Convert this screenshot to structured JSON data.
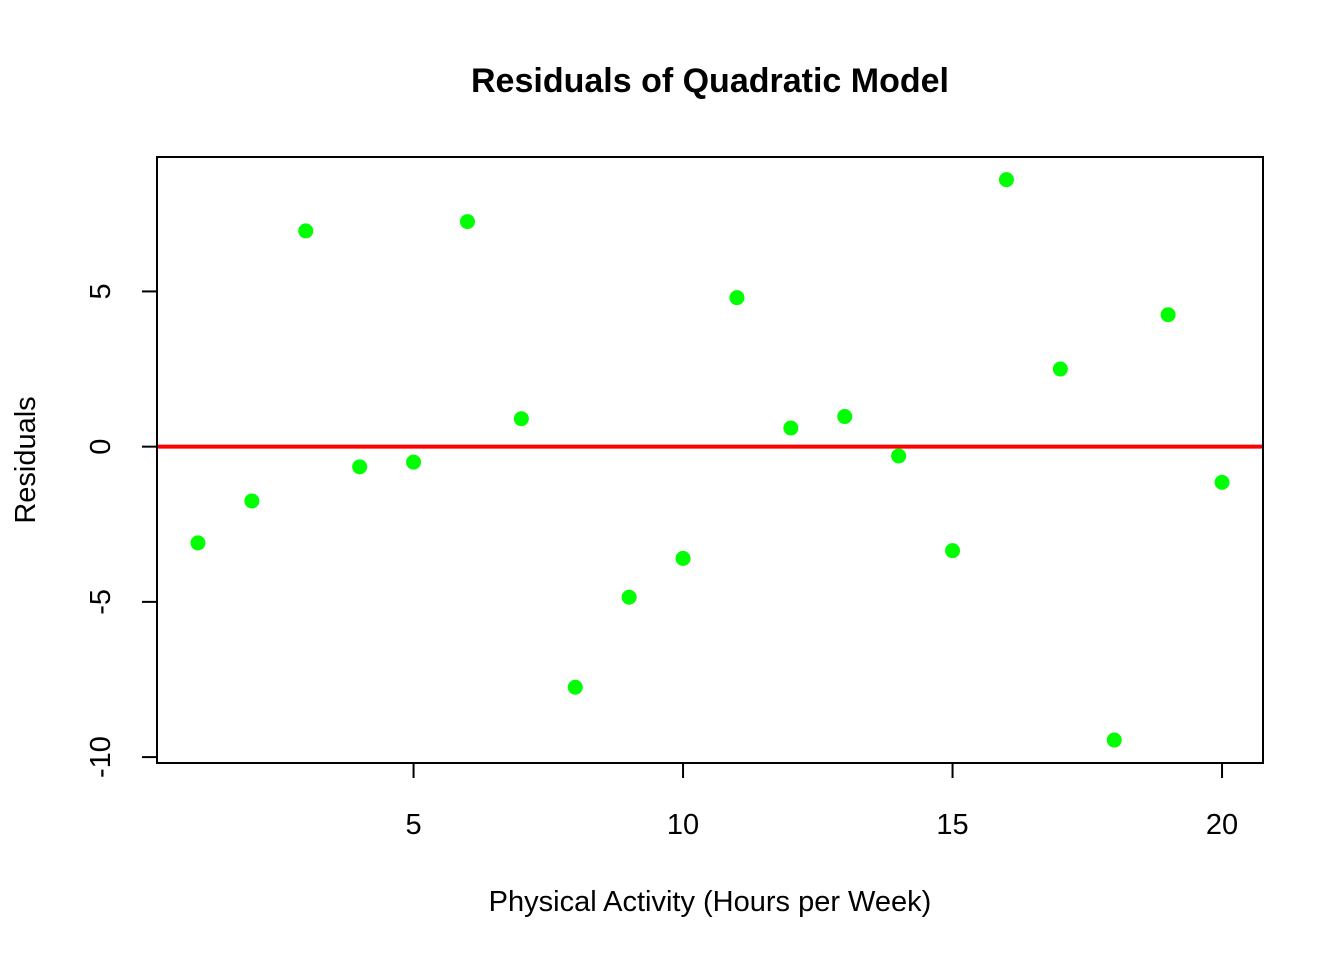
{
  "chart_data": {
    "type": "scatter",
    "title": "Residuals of Quadratic Model",
    "xlabel": "Physical Activity (Hours per Week)",
    "ylabel": "Residuals",
    "xlim": [
      0.24,
      20.76
    ],
    "ylim": [
      -10.19,
      9.33
    ],
    "xticks": [
      5,
      10,
      15,
      20
    ],
    "yticks": [
      -10,
      -5,
      0,
      5
    ],
    "xtick_labels": [
      "5",
      "10",
      "15",
      "20"
    ],
    "ytick_labels": [
      "-10",
      "-5",
      "0",
      "5"
    ],
    "grid": false,
    "legend": "none",
    "point_color": "#00ff00",
    "reference_line": {
      "y": 0,
      "color": "#ff0000"
    },
    "points": [
      {
        "x": 1,
        "y": -3.1
      },
      {
        "x": 2,
        "y": -1.75
      },
      {
        "x": 3,
        "y": 6.95
      },
      {
        "x": 4,
        "y": -0.65
      },
      {
        "x": 5,
        "y": -0.5
      },
      {
        "x": 6,
        "y": 7.25
      },
      {
        "x": 7,
        "y": 0.9
      },
      {
        "x": 8,
        "y": -7.75
      },
      {
        "x": 9,
        "y": -4.85
      },
      {
        "x": 10,
        "y": -3.6
      },
      {
        "x": 11,
        "y": 4.8
      },
      {
        "x": 12,
        "y": 0.6
      },
      {
        "x": 13,
        "y": 0.97
      },
      {
        "x": 14,
        "y": -0.3
      },
      {
        "x": 15,
        "y": -3.35
      },
      {
        "x": 16,
        "y": 8.6
      },
      {
        "x": 17,
        "y": 2.5
      },
      {
        "x": 18,
        "y": -9.45
      },
      {
        "x": 19,
        "y": 4.25
      },
      {
        "x": 20,
        "y": -1.15
      }
    ]
  }
}
